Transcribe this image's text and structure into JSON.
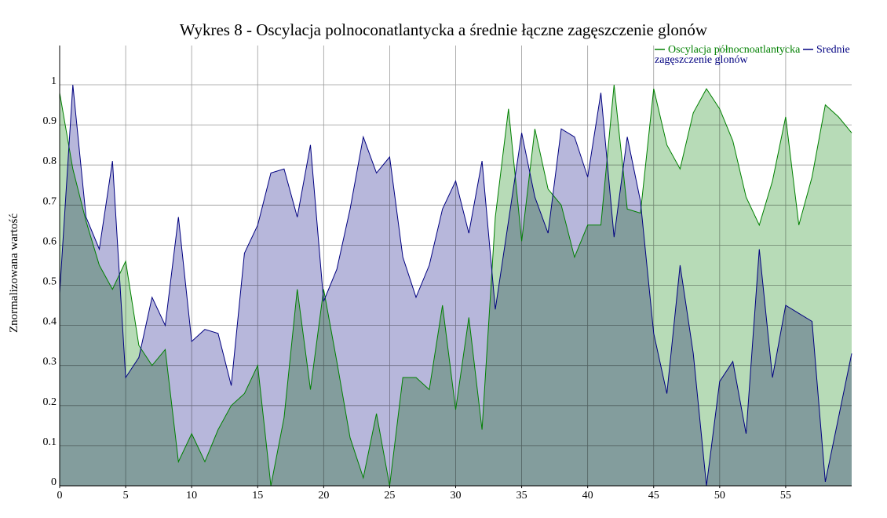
{
  "chart_data": {
    "type": "area",
    "title": "Wykres 8 - Oscylacja polnoconatlantycka a średnie łączne zagęszczenie glonów",
    "xlabel": "",
    "ylabel": "Znormalizowana wartość",
    "xlim": [
      0,
      60
    ],
    "ylim": [
      0,
      1.0
    ],
    "x_ticks": [
      "0",
      "5",
      "10",
      "15",
      "20",
      "25",
      "30",
      "35",
      "40",
      "45",
      "50",
      "55"
    ],
    "x_tick_values": [
      0,
      5,
      10,
      15,
      20,
      25,
      30,
      35,
      40,
      45,
      50,
      55
    ],
    "y_ticks": [
      "0",
      "0.1",
      "0.2",
      "0.3",
      "0.4",
      "0.5",
      "0.6",
      "0.7",
      "0.8",
      "0.9",
      "1"
    ],
    "y_tick_values": [
      0,
      0.1,
      0.2,
      0.3,
      0.4,
      0.5,
      0.6,
      0.7,
      0.8,
      0.9,
      1.0
    ],
    "grid": true,
    "legend_position": "top-right",
    "x": [
      0,
      1,
      2,
      3,
      4,
      5,
      6,
      7,
      8,
      9,
      10,
      11,
      12,
      13,
      14,
      15,
      16,
      17,
      18,
      19,
      20,
      21,
      22,
      23,
      24,
      25,
      26,
      27,
      28,
      29,
      30,
      31,
      32,
      33,
      34,
      35,
      36,
      37,
      38,
      39,
      40,
      41,
      42,
      43,
      44,
      45,
      46,
      47,
      48,
      49,
      50,
      51,
      52,
      53,
      54,
      55,
      56,
      57,
      58,
      59,
      60
    ],
    "series": [
      {
        "name": "Oscylacja północnoatlantycka",
        "color": "#008000",
        "fill": "#99cc99",
        "values": [
          0.98,
          0.79,
          0.66,
          0.55,
          0.49,
          0.56,
          0.35,
          0.3,
          0.34,
          0.06,
          0.13,
          0.06,
          0.14,
          0.2,
          0.23,
          0.3,
          0.0,
          0.17,
          0.49,
          0.24,
          0.49,
          0.31,
          0.12,
          0.02,
          0.18,
          0.0,
          0.27,
          0.27,
          0.24,
          0.45,
          0.19,
          0.42,
          0.14,
          0.67,
          0.94,
          0.61,
          0.89,
          0.74,
          0.7,
          0.57,
          0.65,
          0.65,
          1.0,
          0.69,
          0.68,
          0.99,
          0.85,
          0.79,
          0.93,
          0.99,
          0.94,
          0.86,
          0.72,
          0.65,
          0.76,
          0.92,
          0.65,
          0.77,
          0.95,
          0.92,
          0.88
        ]
      },
      {
        "name": "Srednie zagęszczenie glonów",
        "color": "#000080",
        "fill": "#9999cc",
        "values": [
          0.48,
          1.0,
          0.67,
          0.59,
          0.81,
          0.27,
          0.32,
          0.47,
          0.4,
          0.67,
          0.36,
          0.39,
          0.38,
          0.25,
          0.58,
          0.65,
          0.78,
          0.79,
          0.67,
          0.85,
          0.46,
          0.54,
          0.69,
          0.87,
          0.78,
          0.82,
          0.57,
          0.47,
          0.55,
          0.69,
          0.76,
          0.63,
          0.81,
          0.44,
          0.66,
          0.88,
          0.72,
          0.63,
          0.89,
          0.87,
          0.77,
          0.98,
          0.62,
          0.87,
          0.71,
          0.38,
          0.23,
          0.55,
          0.33,
          0.0,
          0.26,
          0.31,
          0.13,
          0.59,
          0.27,
          0.45,
          0.43,
          0.41,
          0.01,
          0.17,
          0.33
        ]
      }
    ]
  }
}
